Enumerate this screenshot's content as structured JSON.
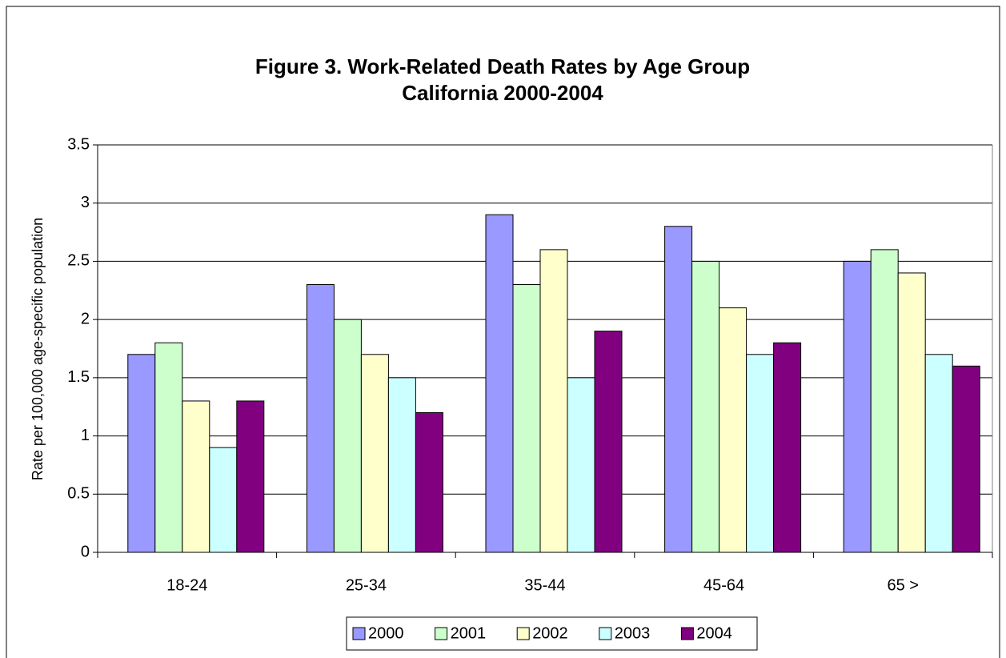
{
  "chart_data": {
    "type": "bar",
    "title": "Figure 3.  Work-Related Death Rates by Age Group",
    "subtitle": "California 2000-2004",
    "y_label": "Rate per 100,000 age-specific population",
    "categories": [
      "18-24",
      "25-34",
      "35-44",
      "45-64",
      "65 >"
    ],
    "series": [
      {
        "name": "2000",
        "color": "#9999ff",
        "values": [
          1.7,
          2.3,
          2.9,
          2.8,
          2.5
        ]
      },
      {
        "name": "2001",
        "color": "#ccffcc",
        "values": [
          1.8,
          2.0,
          2.3,
          2.5,
          2.6
        ]
      },
      {
        "name": "2002",
        "color": "#ffffcc",
        "values": [
          1.3,
          1.7,
          2.6,
          2.1,
          2.4
        ]
      },
      {
        "name": "2003",
        "color": "#ccffff",
        "values": [
          0.9,
          1.5,
          1.5,
          1.7,
          1.7
        ]
      },
      {
        "name": "2004",
        "color": "#800080",
        "values": [
          1.3,
          1.2,
          1.9,
          1.8,
          1.6
        ]
      }
    ],
    "ylim": [
      0,
      3.5
    ],
    "yticks": [
      0,
      0.5,
      1,
      1.5,
      2,
      2.5,
      3,
      3.5
    ],
    "grid": true,
    "legend": "bottom"
  }
}
